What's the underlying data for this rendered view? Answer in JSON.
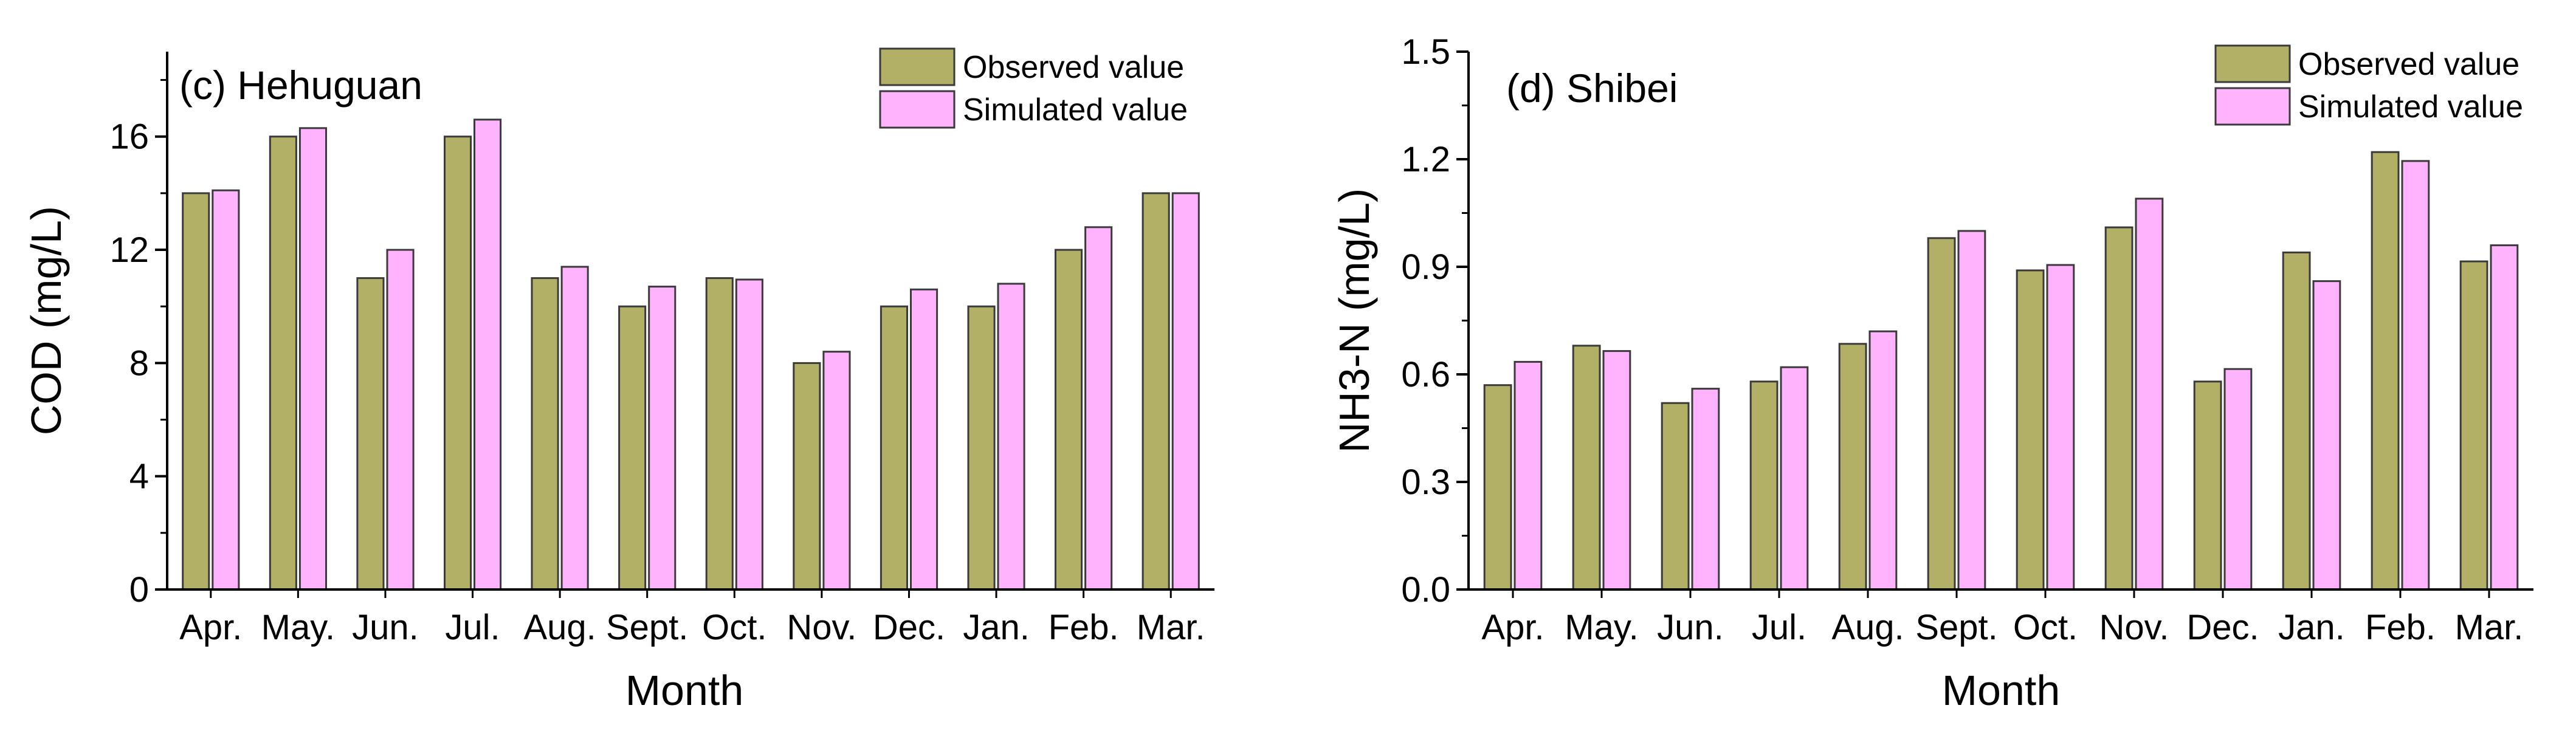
{
  "colors": {
    "observed": "#b2b066",
    "simulated": "#ffb3fc",
    "stroke": "#3a3a3a",
    "axis": "#000000"
  },
  "chart_data": [
    {
      "type": "bar",
      "title": "(c) Hehuguan",
      "xlabel": "Month",
      "ylabel": "COD (mg/L)",
      "ylim": [
        0,
        19
      ],
      "yticks": [
        0,
        4,
        8,
        12,
        16
      ],
      "ytick_labels": [
        "0",
        "4",
        "8",
        "12",
        "16"
      ],
      "categories": [
        "Apr.",
        "May.",
        "Jun.",
        "Jul.",
        "Aug.",
        "Sept.",
        "Oct.",
        "Nov.",
        "Dec.",
        "Jan.",
        "Feb.",
        "Mar."
      ],
      "legend_position": "top-right",
      "series": [
        {
          "name": "Observed value",
          "values": [
            14.0,
            16.0,
            11.0,
            16.0,
            11.0,
            10.0,
            11.0,
            8.0,
            10.0,
            10.0,
            12.0,
            14.0
          ]
        },
        {
          "name": "Simulated value",
          "values": [
            14.1,
            16.3,
            12.0,
            16.6,
            11.4,
            10.7,
            10.95,
            8.4,
            10.6,
            10.8,
            12.8,
            14.0
          ]
        }
      ]
    },
    {
      "type": "bar",
      "title": "(d) Shibei",
      "xlabel": "Month",
      "ylabel": "NH3-N (mg/L)",
      "ylim": [
        0,
        1.5
      ],
      "yticks": [
        0,
        0.3,
        0.6,
        0.9,
        1.2,
        1.5
      ],
      "ytick_labels": [
        "0.0",
        "0.3",
        "0.6",
        "0.9",
        "1.2",
        "1.5"
      ],
      "categories": [
        "Apr.",
        "May.",
        "Jun.",
        "Jul.",
        "Aug.",
        "Sept.",
        "Oct.",
        "Nov.",
        "Dec.",
        "Jan.",
        "Feb.",
        "Mar."
      ],
      "legend_position": "top-right",
      "series": [
        {
          "name": "Observed value",
          "values": [
            0.57,
            0.68,
            0.52,
            0.58,
            0.685,
            0.98,
            0.89,
            1.01,
            0.58,
            0.94,
            1.22,
            0.915
          ]
        },
        {
          "name": "Simulated value",
          "values": [
            0.635,
            0.665,
            0.56,
            0.62,
            0.72,
            1.0,
            0.905,
            1.09,
            0.615,
            0.86,
            1.195,
            0.96
          ]
        }
      ]
    }
  ]
}
